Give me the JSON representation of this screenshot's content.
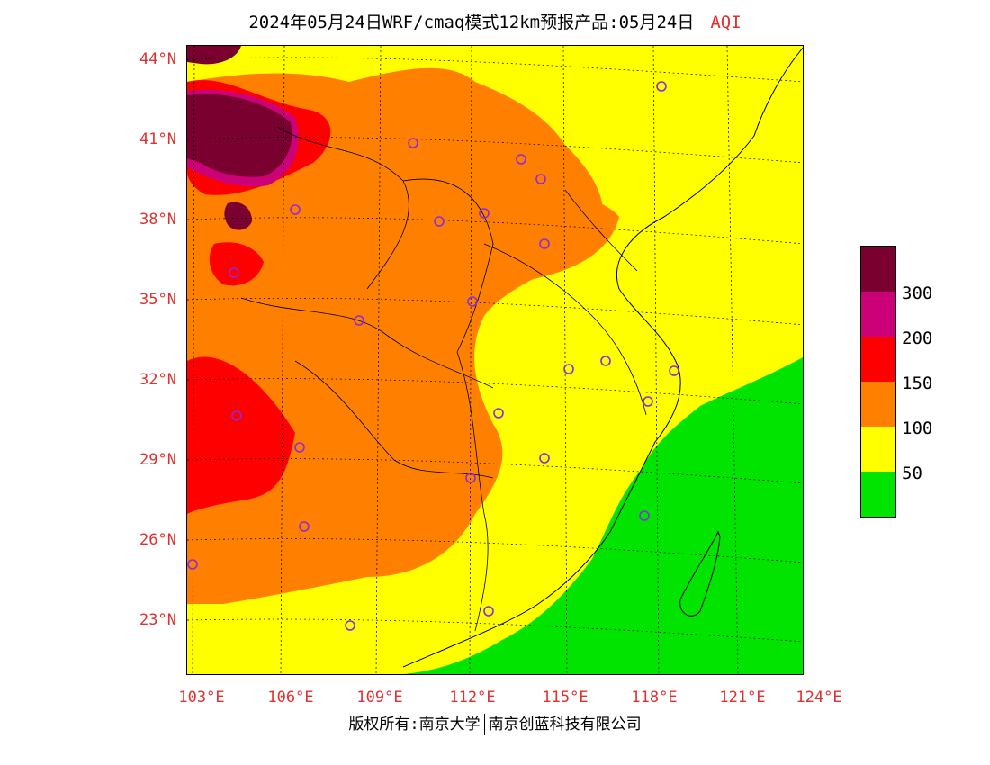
{
  "title": {
    "main": "2024年05月24日WRF/cmaq模式12km预报产品:05月24日",
    "variable": "AQI"
  },
  "map": {
    "lat_labels": [
      "44°N",
      "41°N",
      "38°N",
      "35°N",
      "32°N",
      "29°N",
      "26°N",
      "23°N"
    ],
    "lon_labels": [
      "103°E",
      "106°E",
      "109°E",
      "112°E",
      "115°E",
      "118°E",
      "121°E",
      "124°E"
    ]
  },
  "legend": {
    "colors": [
      "#7a0030",
      "#cc0077",
      "#ff0000",
      "#ff8000",
      "#ffff00",
      "#00e400"
    ],
    "labels": [
      "300",
      "200",
      "150",
      "100",
      "50"
    ]
  },
  "footer": {
    "left": "版权所有:南京大学",
    "right": "南京创蓝科技有限公司"
  }
}
